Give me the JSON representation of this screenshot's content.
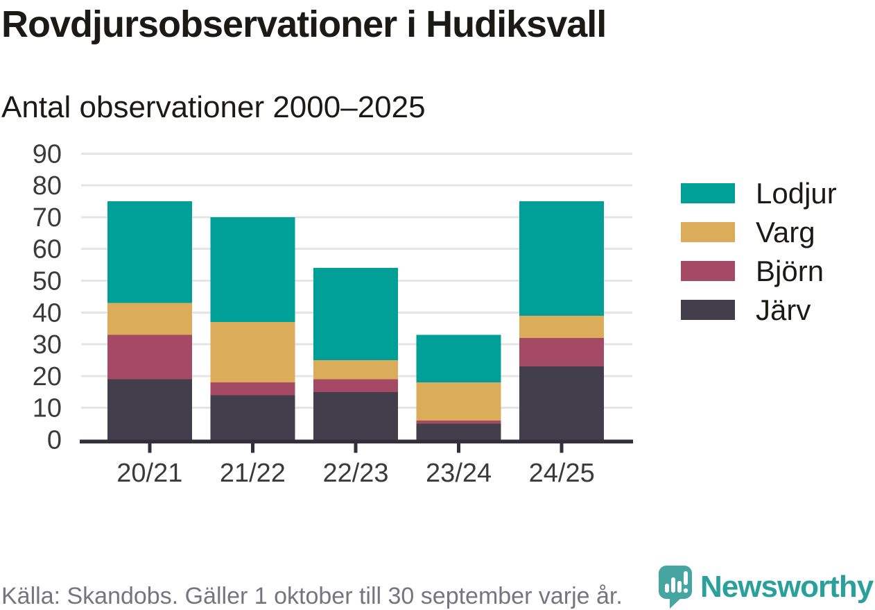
{
  "chart_data": {
    "type": "bar",
    "stacked": true,
    "title": "Rovdjursobservationer i Hudiksvall",
    "subtitle": "Antal observationer 2000–2025",
    "categories": [
      "20/21",
      "21/22",
      "22/23",
      "23/24",
      "24/25"
    ],
    "series": [
      {
        "name": "Järv",
        "color": "#433e4b",
        "values": [
          19,
          14,
          15,
          5,
          23
        ]
      },
      {
        "name": "Björn",
        "color": "#a54a64",
        "values": [
          14,
          4,
          4,
          1,
          9
        ]
      },
      {
        "name": "Varg",
        "color": "#dbad5a",
        "values": [
          10,
          19,
          6,
          12,
          7
        ]
      },
      {
        "name": "Lodjur",
        "color": "#00a099",
        "values": [
          32,
          33,
          29,
          15,
          36
        ]
      }
    ],
    "totals": [
      75,
      70,
      54,
      33,
      75
    ],
    "legend_order": [
      "Lodjur",
      "Varg",
      "Björn",
      "Järv"
    ],
    "legend_position": "right",
    "xlabel": "",
    "ylabel": "",
    "ylim": [
      0,
      90
    ],
    "yticks": [
      0,
      10,
      20,
      30,
      40,
      50,
      60,
      70,
      80,
      90
    ],
    "grid": true
  },
  "colors": {
    "grid": "#e4e4e4",
    "axis": "#332f3d",
    "tick_text": "#3a3a3a",
    "text": "#1b1a15",
    "source_text": "#76747f",
    "brand_teal": "#2aa09c",
    "icon_teal": "#46a5a1"
  },
  "footer": {
    "source": "Källa: Skandobs. Gäller 1 oktober till 30 september varje år."
  },
  "brand": {
    "name": "Newsworthy",
    "icon": "speech-bubble-bar-chart-icon"
  }
}
